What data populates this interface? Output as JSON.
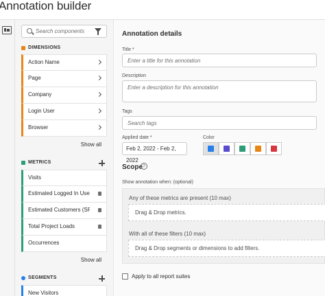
{
  "header": {
    "title": "Annotation builder"
  },
  "rail": {
    "icon": "panel-icon"
  },
  "left_panel": {
    "search": {
      "placeholder": "Search components",
      "value": ""
    },
    "dimensions": {
      "heading": "DIMENSIONS",
      "color": "#e68619",
      "items": [
        {
          "label": "Action Name"
        },
        {
          "label": "Page"
        },
        {
          "label": "Company"
        },
        {
          "label": "Login User"
        },
        {
          "label": "Browser"
        }
      ],
      "show_all": "Show all"
    },
    "metrics": {
      "heading": "METRICS",
      "color": "#2d9d78",
      "items": [
        {
          "label": "Visits"
        },
        {
          "label": "Estimated Logged In User..."
        },
        {
          "label": "Estimated Customers (SPA)"
        },
        {
          "label": "Total Project Loads"
        },
        {
          "label": "Occurrences"
        }
      ],
      "show_all": "Show all"
    },
    "segments": {
      "heading": "SEGMENTS",
      "color": "#2680eb",
      "items": [
        {
          "label": "New Visitors"
        }
      ]
    }
  },
  "details": {
    "title": "Annotation details",
    "title_field": {
      "label": "Title",
      "required_mark": "*",
      "placeholder": "Enter a title for this annotation",
      "value": ""
    },
    "description_field": {
      "label": "Description",
      "placeholder": "Enter a description for this annotation",
      "value": ""
    },
    "tags_field": {
      "label": "Tags",
      "placeholder": "Search tags",
      "value": ""
    },
    "applied_date": {
      "label": "Applied date",
      "required_mark": "*",
      "value": "Feb 2, 2022 - Feb 2, 2022"
    },
    "color": {
      "label": "Color",
      "options": [
        "#2680eb",
        "#5b4ccf",
        "#2d9d78",
        "#e68619",
        "#d7373f"
      ],
      "selected": 0
    }
  },
  "scope": {
    "title": "Scope",
    "help": "?",
    "show_when": "Show annotation when: (optional)",
    "metrics_zone": {
      "label": "Any of these metrics are present (10 max)",
      "placeholder": "Drag & Drop metrics."
    },
    "filters_zone": {
      "label": "With all of these filters (10 max)",
      "placeholder": "Drag & Drop segments or dimensions to add filters."
    },
    "apply_all": {
      "label": "Apply to all report suites",
      "checked": false
    }
  }
}
